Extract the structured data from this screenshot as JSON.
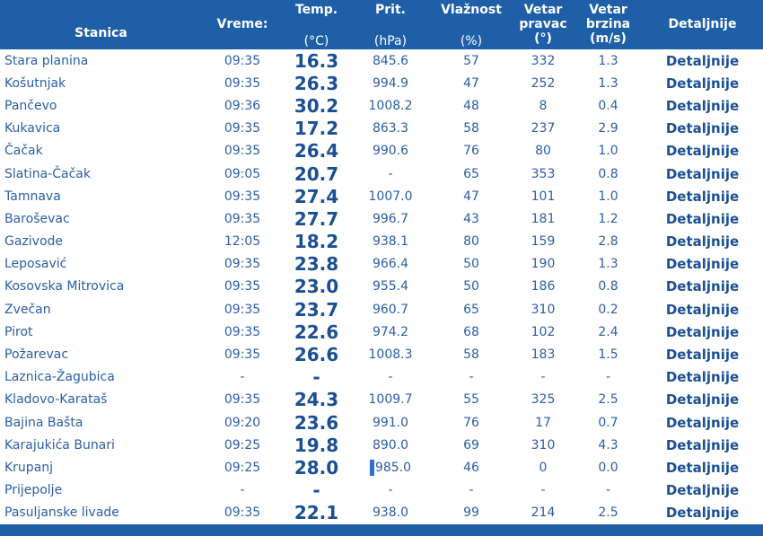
{
  "headers": {
    "stanica": "Stanica",
    "vreme": "Vreme:",
    "temp": "Temp.",
    "temp_unit": "(°C)",
    "prit": "Prit.",
    "prit_unit": "(hPa)",
    "vlaz": "Vlažnost",
    "vlaz_unit": "(%)",
    "pravac_1": "Vetar",
    "pravac_2": "pravac",
    "pravac_3": "(°)",
    "brzina_1": "Vetar",
    "brzina_2": "brzina",
    "brzina_3": "(m/s)",
    "detaljnije": "Detaljnije"
  },
  "rows": [
    {
      "station": "Stara planina",
      "time": "09:35",
      "temp": "16.3",
      "pressure": "845.6",
      "humidity": "57",
      "wind_dir": "332",
      "wind_speed": "1.3",
      "link": "Detaljnije"
    },
    {
      "station": "Košutnjak",
      "time": "09:35",
      "temp": "26.3",
      "pressure": "994.9",
      "humidity": "47",
      "wind_dir": "252",
      "wind_speed": "1.3",
      "link": "Detaljnije"
    },
    {
      "station": "Pančevo",
      "time": "09:36",
      "temp": "30.2",
      "pressure": "1008.2",
      "humidity": "48",
      "wind_dir": "8",
      "wind_speed": "0.4",
      "link": "Detaljnije"
    },
    {
      "station": "Kukavica",
      "time": "09:35",
      "temp": "17.2",
      "pressure": "863.3",
      "humidity": "58",
      "wind_dir": "237",
      "wind_speed": "2.9",
      "link": "Detaljnije"
    },
    {
      "station": "Čačak",
      "time": "09:35",
      "temp": "26.4",
      "pressure": "990.6",
      "humidity": "76",
      "wind_dir": "80",
      "wind_speed": "1.0",
      "link": "Detaljnije"
    },
    {
      "station": "Slatina-Čačak",
      "time": "09:05",
      "temp": "20.7",
      "pressure": "-",
      "humidity": "65",
      "wind_dir": "353",
      "wind_speed": "0.8",
      "link": "Detaljnije"
    },
    {
      "station": "Tamnava",
      "time": "09:35",
      "temp": "27.4",
      "pressure": "1007.0",
      "humidity": "47",
      "wind_dir": "101",
      "wind_speed": "1.0",
      "link": "Detaljnije"
    },
    {
      "station": "Baroševac",
      "time": "09:35",
      "temp": "27.7",
      "pressure": "996.7",
      "humidity": "43",
      "wind_dir": "181",
      "wind_speed": "1.2",
      "link": "Detaljnije"
    },
    {
      "station": "Gazivode",
      "time": "12:05",
      "temp": "18.2",
      "pressure": "938.1",
      "humidity": "80",
      "wind_dir": "159",
      "wind_speed": "2.8",
      "link": "Detaljnije"
    },
    {
      "station": "Leposavić",
      "time": "09:35",
      "temp": "23.8",
      "pressure": "966.4",
      "humidity": "50",
      "wind_dir": "190",
      "wind_speed": "1.3",
      "link": "Detaljnije"
    },
    {
      "station": "Kosovska Mitrovica",
      "time": "09:35",
      "temp": "23.0",
      "pressure": "955.4",
      "humidity": "50",
      "wind_dir": "186",
      "wind_speed": "0.8",
      "link": "Detaljnije"
    },
    {
      "station": "Zvečan",
      "time": "09:35",
      "temp": "23.7",
      "pressure": "960.7",
      "humidity": "65",
      "wind_dir": "310",
      "wind_speed": "0.2",
      "link": "Detaljnije"
    },
    {
      "station": "Pirot",
      "time": "09:35",
      "temp": "22.6",
      "pressure": "974.2",
      "humidity": "68",
      "wind_dir": "102",
      "wind_speed": "2.4",
      "link": "Detaljnije"
    },
    {
      "station": "Požarevac",
      "time": "09:35",
      "temp": "26.6",
      "pressure": "1008.3",
      "humidity": "58",
      "wind_dir": "183",
      "wind_speed": "1.5",
      "link": "Detaljnije"
    },
    {
      "station": "Laznica-Žagubica",
      "time": "-",
      "temp": "-",
      "pressure": "-",
      "humidity": "-",
      "wind_dir": "-",
      "wind_speed": "-",
      "link": "Detaljnije"
    },
    {
      "station": "Kladovo-Karataš",
      "time": "09:35",
      "temp": "24.3",
      "pressure": "1009.7",
      "humidity": "55",
      "wind_dir": "325",
      "wind_speed": "2.5",
      "link": "Detaljnije"
    },
    {
      "station": "Bajina Bašta",
      "time": "09:20",
      "temp": "23.6",
      "pressure": "991.0",
      "humidity": "76",
      "wind_dir": "17",
      "wind_speed": "0.7",
      "link": "Detaljnije"
    },
    {
      "station": "Karajukića Bunari",
      "time": "09:25",
      "temp": "19.8",
      "pressure": "890.0",
      "humidity": "69",
      "wind_dir": "310",
      "wind_speed": "4.3",
      "link": "Detaljnije"
    },
    {
      "station": "Krupanj",
      "time": "09:25",
      "temp": "28.0",
      "pressure": "985.0",
      "humidity": "46",
      "wind_dir": "0",
      "wind_speed": "0.0",
      "link": "Detaljnije",
      "text_cursor": true
    },
    {
      "station": "Prijepolje",
      "time": "-",
      "temp": "-",
      "pressure": "-",
      "humidity": "-",
      "wind_dir": "-",
      "wind_speed": "-",
      "link": "Detaljnije"
    },
    {
      "station": "Pasuljanske livade",
      "time": "09:35",
      "temp": "22.1",
      "pressure": "938.0",
      "humidity": "99",
      "wind_dir": "214",
      "wind_speed": "2.5",
      "link": "Detaljnije"
    }
  ],
  "colors": {
    "header_bg": "#1f5fa8",
    "text": "#2a5ea6",
    "accent": "#1a4f94"
  }
}
